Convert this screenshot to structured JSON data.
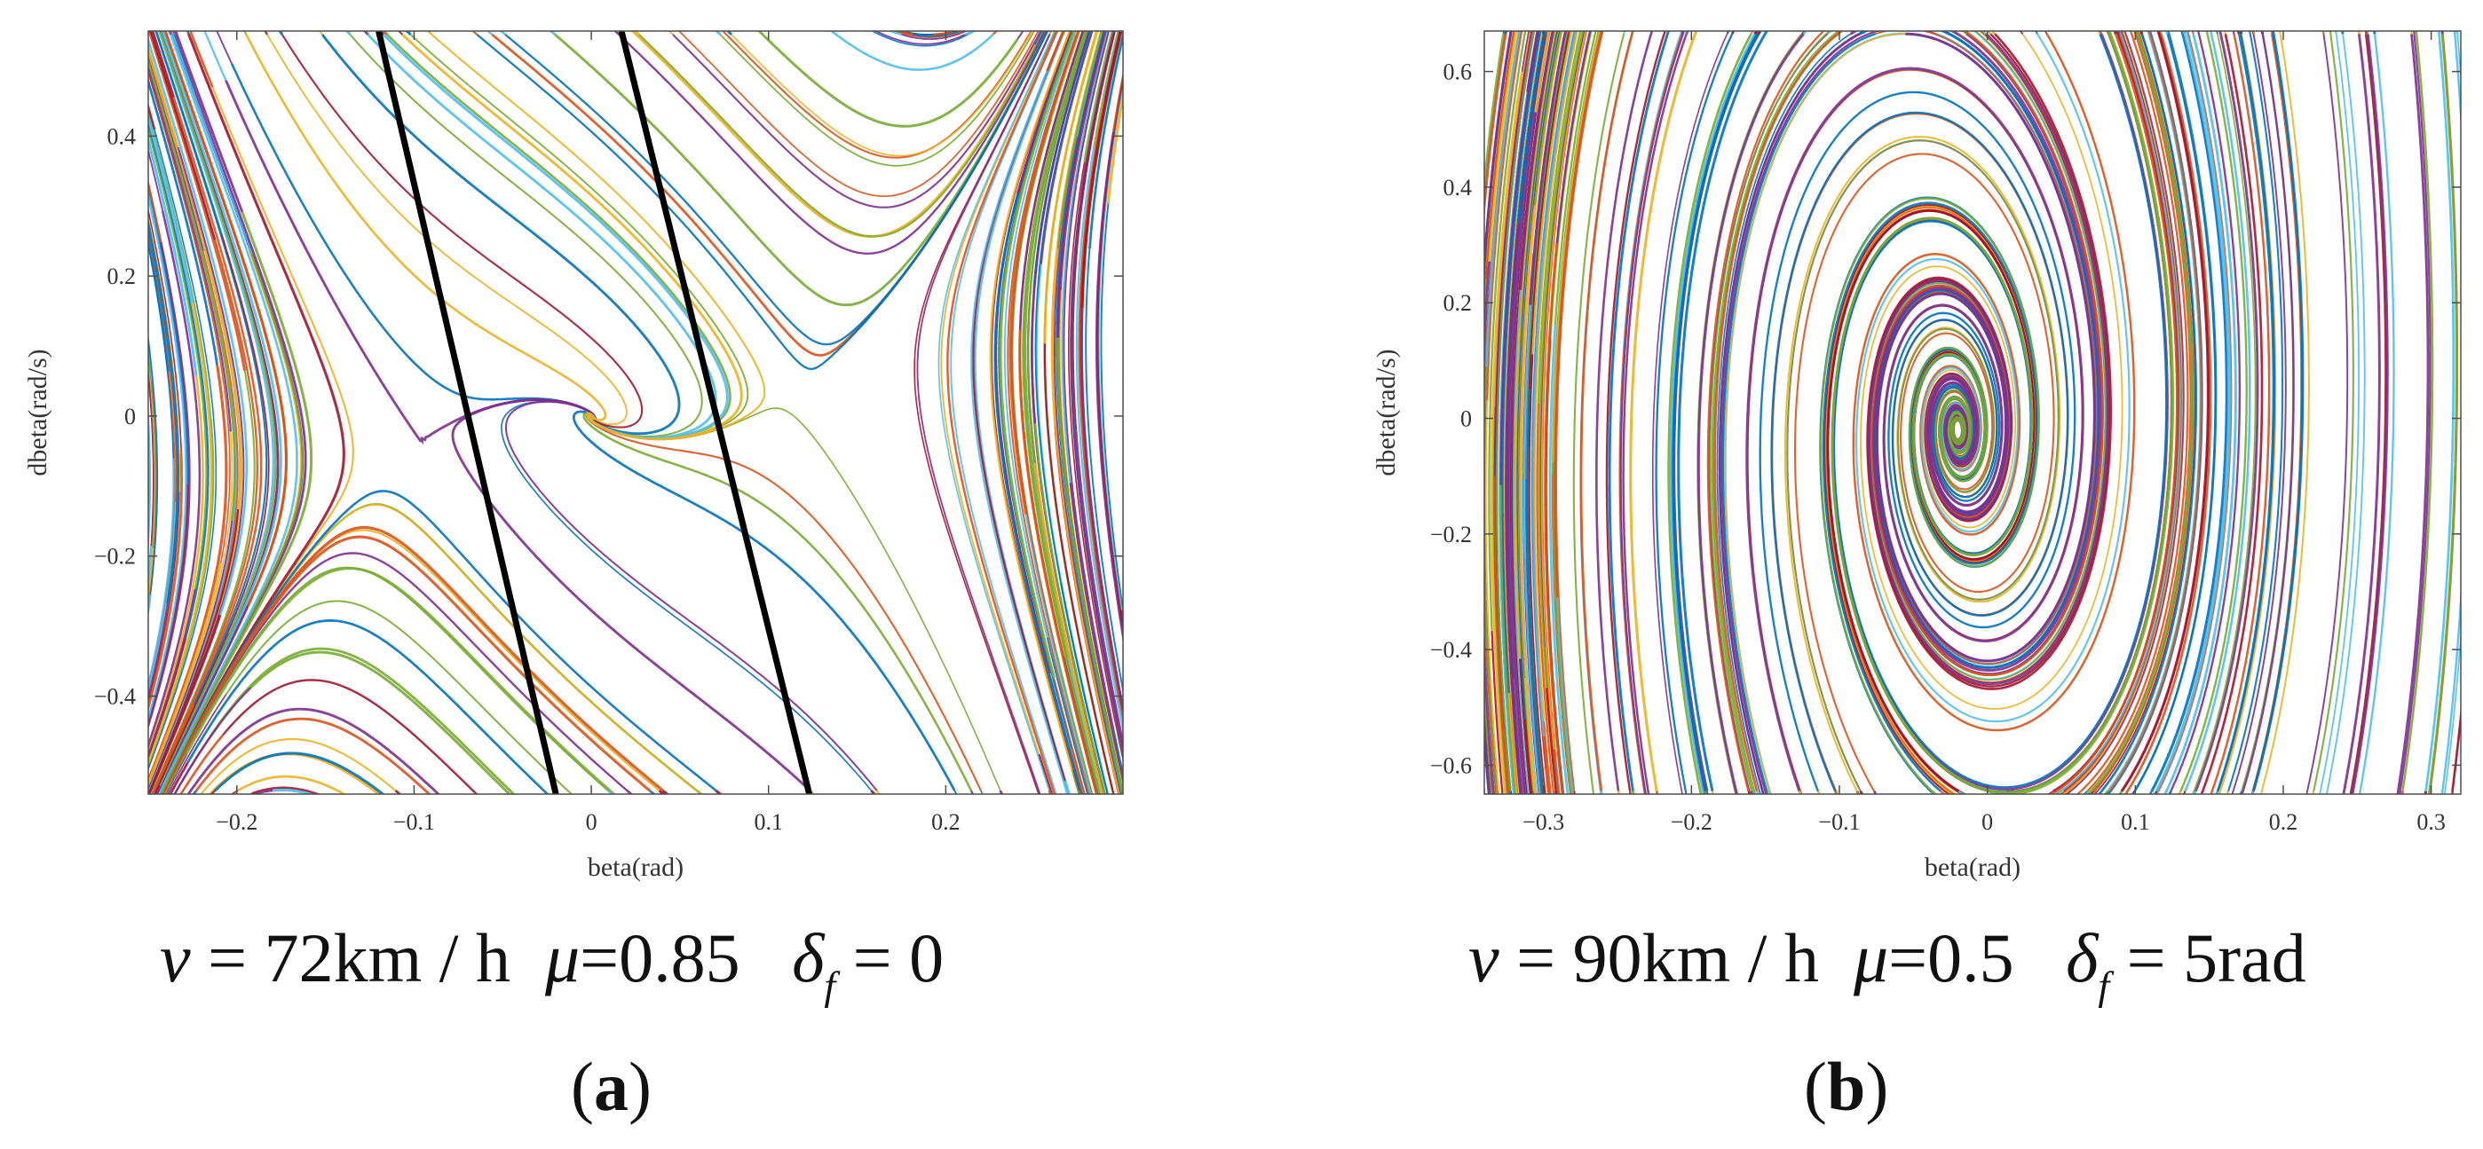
{
  "chart_data": [
    {
      "type": "line",
      "title": "",
      "xlabel": "beta(rad)",
      "ylabel": "dbeta(rad/s)",
      "xlim": [
        -0.25,
        0.3
      ],
      "ylim": [
        -0.54,
        0.55
      ],
      "xticks": [
        -0.2,
        -0.1,
        0,
        0.1,
        0.2
      ],
      "xtick_labels": [
        "−0.2",
        "−0.1",
        "0",
        "0.1",
        "0.2"
      ],
      "yticks": [
        -0.4,
        -0.2,
        0,
        0.2,
        0.4
      ],
      "ytick_labels": [
        "−0.4",
        "−0.2",
        "0",
        "0.2",
        "0.4"
      ],
      "grid": false,
      "description_series": "phase-plane trajectories with saddle points near beta = -0.1 and beta = 0.1 and stable focus at origin",
      "equilibria": [
        {
          "name": "stable-focus",
          "x": 0.0,
          "y": 0.0
        },
        {
          "name": "left-saddle",
          "x": -0.08,
          "y": 0.0
        },
        {
          "name": "right-saddle",
          "x": 0.1,
          "y": 0.0
        }
      ],
      "boundary_lines": [
        {
          "name": "left-boundary",
          "points": [
            [
              -0.12,
              0.55
            ],
            [
              -0.02,
              -0.54
            ]
          ]
        },
        {
          "name": "right-boundary",
          "points": [
            [
              0.017,
              0.55
            ],
            [
              0.123,
              -0.54
            ]
          ]
        }
      ],
      "caption_parts": {
        "v": "v",
        "eq1": " = 72km / h",
        "mu": "μ",
        "eq2": "=0.85",
        "delta": "δ",
        "sub": "f",
        "eq3": " = 0"
      },
      "panel_label": "a"
    },
    {
      "type": "line",
      "title": "",
      "xlabel": "beta(rad)",
      "ylabel": "dbeta(rad/s)",
      "xlim": [
        -0.34,
        0.32
      ],
      "ylim": [
        -0.65,
        0.67
      ],
      "xticks": [
        -0.3,
        -0.2,
        -0.1,
        0,
        0.1,
        0.2,
        0.3
      ],
      "xtick_labels": [
        "−0.3",
        "−0.2",
        "−0.1",
        "0",
        "0.1",
        "0.2",
        "0.3"
      ],
      "yticks": [
        -0.6,
        -0.4,
        -0.2,
        0,
        0.2,
        0.4,
        0.6
      ],
      "ytick_labels": [
        "−0.6",
        "−0.4",
        "−0.2",
        "0",
        "0.2",
        "0.4",
        "0.6"
      ],
      "grid": false,
      "description_series": "phase-plane trajectories spiralling into focus near beta = -0.02, dbeta = -0.02",
      "equilibria": [
        {
          "name": "stable-focus",
          "x": -0.02,
          "y": -0.02
        }
      ],
      "boundary_lines": [],
      "caption_parts": {
        "v": "v",
        "eq1": " = 90km / h",
        "mu": "μ",
        "eq2": "=0.5",
        "delta": "δ",
        "sub": "f",
        "eq3": " = 5rad"
      },
      "panel_label": "b"
    }
  ],
  "palette": [
    "#0072bd",
    "#d95319",
    "#edb120",
    "#7e2f8e",
    "#77ac30",
    "#4dbeee",
    "#a2142f"
  ],
  "boundary_color": "#000000"
}
